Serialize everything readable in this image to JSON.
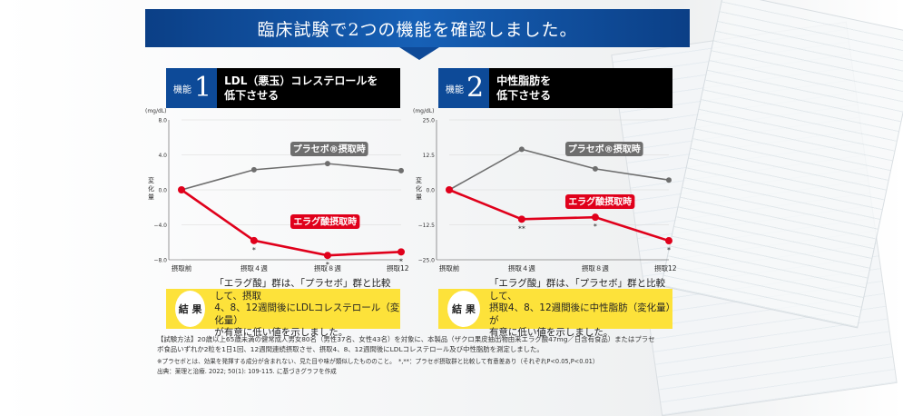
{
  "banner": {
    "title": "臨床試験で2つの機能を確認しました。"
  },
  "panel1": {
    "label": "機能",
    "number": "1",
    "title_line1": "LDL（悪玉）コレステロールを",
    "title_line2": "低下させる",
    "unit": "(mg/dL)",
    "ylabel": "変化量",
    "result_badge": "結 果",
    "result_line1": "「エラグ酸」群は、「プラセボ」群と比較して、摂取",
    "result_line2": "4、8、12週間後にLDLコレステロール（変化量）",
    "result_line3": "が有意に低い値を示しました。"
  },
  "panel2": {
    "label": "機能",
    "number": "2",
    "title_line1": "中性脂肪を",
    "title_line2": "低下させる",
    "unit": "(mg/dL)",
    "ylabel": "変化量",
    "result_badge": "結 果",
    "result_line1": "「エラグ酸」群は、「プラセボ」群と比較して、",
    "result_line2": "摂取4、8、12週間後に中性脂肪（変化量）が",
    "result_line3": "有意に低い値を示しました。"
  },
  "notes": {
    "line1": "【試験方法】20歳以上65歳未満の健常成人男女80名（男性37名、女性43名）を対象に、本製品（ザクロ果皮抽出物由来エラグ酸47mg／日含有食品）またはプラセ",
    "line2": "ボ食品いずれか2粒を1日1回、12週間連続摂取させ、摂取4、8、12週間後にLDLコレステロール及び中性脂肪を測定しました。",
    "line3": "※プラセボとは、効果を発揮する成分が含まれない、見た目や味が類似したもののこと。　*,**：プラセボ摂取群と比較して有意差あり（それぞれP<0.05,P<0.01）",
    "line4": "出典：薬理と治療. 2022; 50(1): 109-115. に基づきグラフを作成"
  },
  "colors": {
    "banner": "#0d4a98",
    "placebo": "#6e6e6e",
    "ellagic": "#e0001b",
    "result_bg": "#fde23a"
  },
  "chart_data": [
    {
      "type": "line",
      "x": [
        "摂取前",
        "摂取４週",
        "摂取８週",
        "摂取12週"
      ],
      "ylim": [
        -8.0,
        8.0
      ],
      "yticks": [
        "8.0",
        "4.0",
        "0.0",
        "−4.0",
        "−8.0"
      ],
      "series": [
        {
          "name": "プラセボ®摂取時",
          "values": [
            0.0,
            2.3,
            3.0,
            2.2
          ],
          "marks": [
            "",
            "",
            "",
            ""
          ]
        },
        {
          "name": "エラグ酸摂取時",
          "values": [
            0.0,
            -5.8,
            -7.5,
            -7.1
          ],
          "marks": [
            "",
            "*",
            "*",
            "*"
          ]
        }
      ]
    },
    {
      "type": "line",
      "x": [
        "摂取前",
        "摂取４週",
        "摂取８週",
        "摂取12週"
      ],
      "ylim": [
        -25.0,
        25.0
      ],
      "yticks": [
        "25.0",
        "12.5",
        "0.0",
        "−12.5",
        "−25.0"
      ],
      "series": [
        {
          "name": "プラセボ®摂取時",
          "values": [
            0.0,
            14.5,
            7.5,
            3.5
          ],
          "marks": [
            "",
            "",
            "",
            ""
          ]
        },
        {
          "name": "エラグ酸摂取時",
          "values": [
            0.0,
            -10.5,
            -9.8,
            -18.2
          ],
          "marks": [
            "",
            "**",
            "*",
            "*"
          ]
        }
      ]
    }
  ]
}
